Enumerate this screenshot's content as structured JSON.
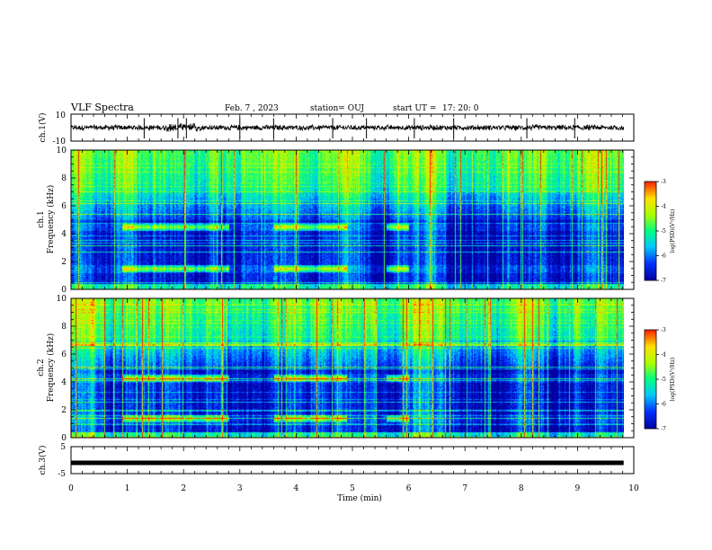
{
  "header": {
    "title": "VLF Spectra",
    "date": "Feb. 7 , 2023",
    "station": "station= OUJ",
    "start_label": "start UT =",
    "start_time": "17: 20: 0"
  },
  "colors": {
    "waveform": "#000000",
    "colormap": [
      "#0000a0",
      "#0030ff",
      "#00c8ff",
      "#00ff80",
      "#a8ff00",
      "#ffe000",
      "#ff2000"
    ]
  },
  "chart_data": [
    {
      "panel": "ch1-waveform",
      "type": "line",
      "ylabel": "ch.1(V)",
      "ylim": [
        -10,
        10
      ],
      "yticks": [
        "10",
        "-10"
      ],
      "description_level_v": 0
    },
    {
      "panel": "ch1-spectrogram",
      "type": "heatmap",
      "ylabel_line1": "ch.1",
      "ylabel_line2": "Frequency (kHz)",
      "ylim": [
        0,
        10
      ],
      "yticks": [
        "10",
        "8",
        "6",
        "4",
        "2",
        "0"
      ],
      "bands_khz": [
        4.5,
        1.5
      ],
      "colorbar": {
        "label": "log(PSD)(V²/Hz)",
        "range": [
          -7,
          -3
        ],
        "ticks": [
          "-3",
          "-4",
          "-5",
          "-6",
          "-7"
        ]
      }
    },
    {
      "panel": "ch2-spectrogram",
      "type": "heatmap",
      "ylabel_line1": "ch.2",
      "ylabel_line2": "Frequency (kHz)",
      "ylim": [
        0,
        10
      ],
      "yticks": [
        "10",
        "8",
        "6",
        "4",
        "2",
        "0"
      ],
      "bands_khz": [
        4.3,
        1.4
      ],
      "colorbar": {
        "label": "log(PSD)(V²/Hz)",
        "range": [
          -7,
          -3
        ],
        "ticks": [
          "-3",
          "-4",
          "-5",
          "-6",
          "-7"
        ]
      }
    },
    {
      "panel": "ch3-waveform",
      "type": "line",
      "ylabel": "ch.3(V)",
      "ylim": [
        -5,
        5
      ],
      "yticks": [
        "5",
        "-5"
      ],
      "level_v": -1
    }
  ],
  "xaxis": {
    "label": "Time (min)",
    "xlim": [
      0,
      10
    ],
    "ticks": [
      "0",
      "1",
      "2",
      "3",
      "4",
      "5",
      "6",
      "7",
      "8",
      "9",
      "10"
    ],
    "data_end_min": 9.82
  }
}
